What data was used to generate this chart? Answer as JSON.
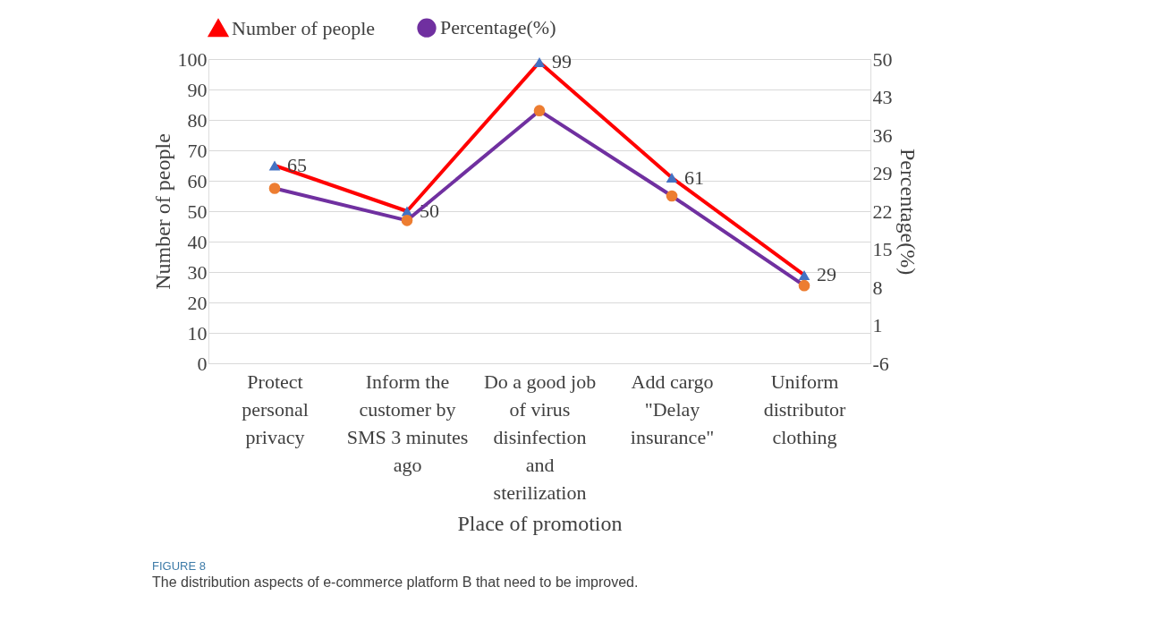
{
  "chart_data": {
    "type": "line",
    "categories": [
      "Protect personal privacy",
      "Inform the customer by SMS 3 minutes ago",
      "Do a good job of virus disinfection and sterilization",
      "Add cargo \"Delay insurance\"",
      "Uniform distributor clothing"
    ],
    "xlabel": "Place of promotion",
    "ylabel": "Number of people",
    "y2label": "Percentage(%)",
    "series": [
      {
        "name": "Number of people",
        "color": "#ff0000",
        "marker": "triangle",
        "values": [
          65,
          50,
          99,
          61,
          29
        ],
        "value_labels": [
          "65",
          "50",
          "99",
          "61",
          "29"
        ]
      },
      {
        "name": "Percentage(%)",
        "color": "#7030a0",
        "marker": "circle",
        "axis": "y2",
        "values": [
          26.2,
          20.3,
          40.5,
          24.8,
          8.3
        ]
      }
    ],
    "ylim": [
      0,
      100
    ],
    "yticks": [
      0,
      10,
      20,
      30,
      40,
      50,
      60,
      70,
      80,
      90,
      100
    ],
    "y2lim": [
      -6,
      50
    ],
    "y2ticks": [
      -6,
      1,
      8,
      15,
      22,
      29,
      36,
      43,
      50
    ],
    "grid": "y",
    "legend": "top",
    "annotations": [
      "FIGURE 8",
      "The distribution aspects of e-commerce platform B that need to be improved."
    ]
  }
}
